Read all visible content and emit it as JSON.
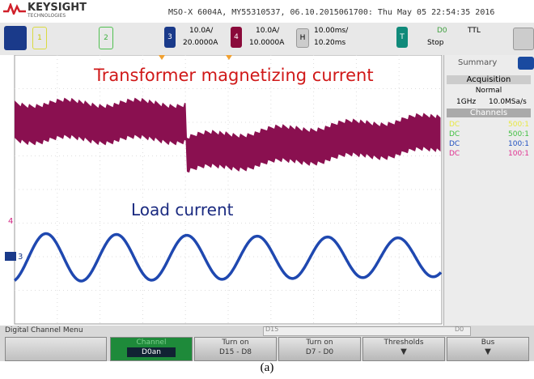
{
  "header": {
    "brand": "KEYSIGHT",
    "brand_sub": "TECHNOLOGIES",
    "info": "MSO-X 6004A, MY55310537, 06.10.2015061700: Thu May 05 22:54:35 2016"
  },
  "toolbar": {
    "ch1": "1",
    "ch2": "2",
    "ch3": "3",
    "ch3_scale": "10.0A/",
    "ch3_offset": "20.0000A",
    "ch4": "4",
    "ch4_scale": "10.0A/",
    "ch4_offset": "10.0000A",
    "horizontal": "H",
    "h_scale": "10.00ms/",
    "h_delay": "10.20ms",
    "trigger": "T",
    "trigger_source": "D0",
    "trigger_state": "Stop",
    "trigger_level": "TTL"
  },
  "annotations": {
    "top": "Transformer magnetizing current",
    "bottom": "Load current"
  },
  "markers": {
    "ch4": "4",
    "ch3": "3"
  },
  "side_panel": {
    "tab": "Summary",
    "acquisition_header": "Acquisition",
    "mode": "Normal",
    "bandwidth": "1GHz",
    "sample_rate": "10.0MSa/s",
    "channels_header": "Channels",
    "channels": [
      {
        "coupling": "DC",
        "probe": "500:1"
      },
      {
        "coupling": "DC",
        "probe": "500:1"
      },
      {
        "coupling": "DC",
        "probe": "100:1"
      },
      {
        "coupling": "DC",
        "probe": "100:1"
      }
    ]
  },
  "menu": {
    "title": "Digital Channel Menu",
    "bus_start": "D15",
    "bus_end": "D0",
    "softkeys": [
      {
        "line1": "Channel",
        "line2": "D0an"
      },
      {
        "line1": "Turn on",
        "line2": "D15 - D8"
      },
      {
        "line1": "Turn on",
        "line2": "D7 - D0"
      },
      {
        "line1": "Thresholds"
      },
      {
        "line1": "Bus"
      }
    ]
  },
  "caption": "(a)"
}
